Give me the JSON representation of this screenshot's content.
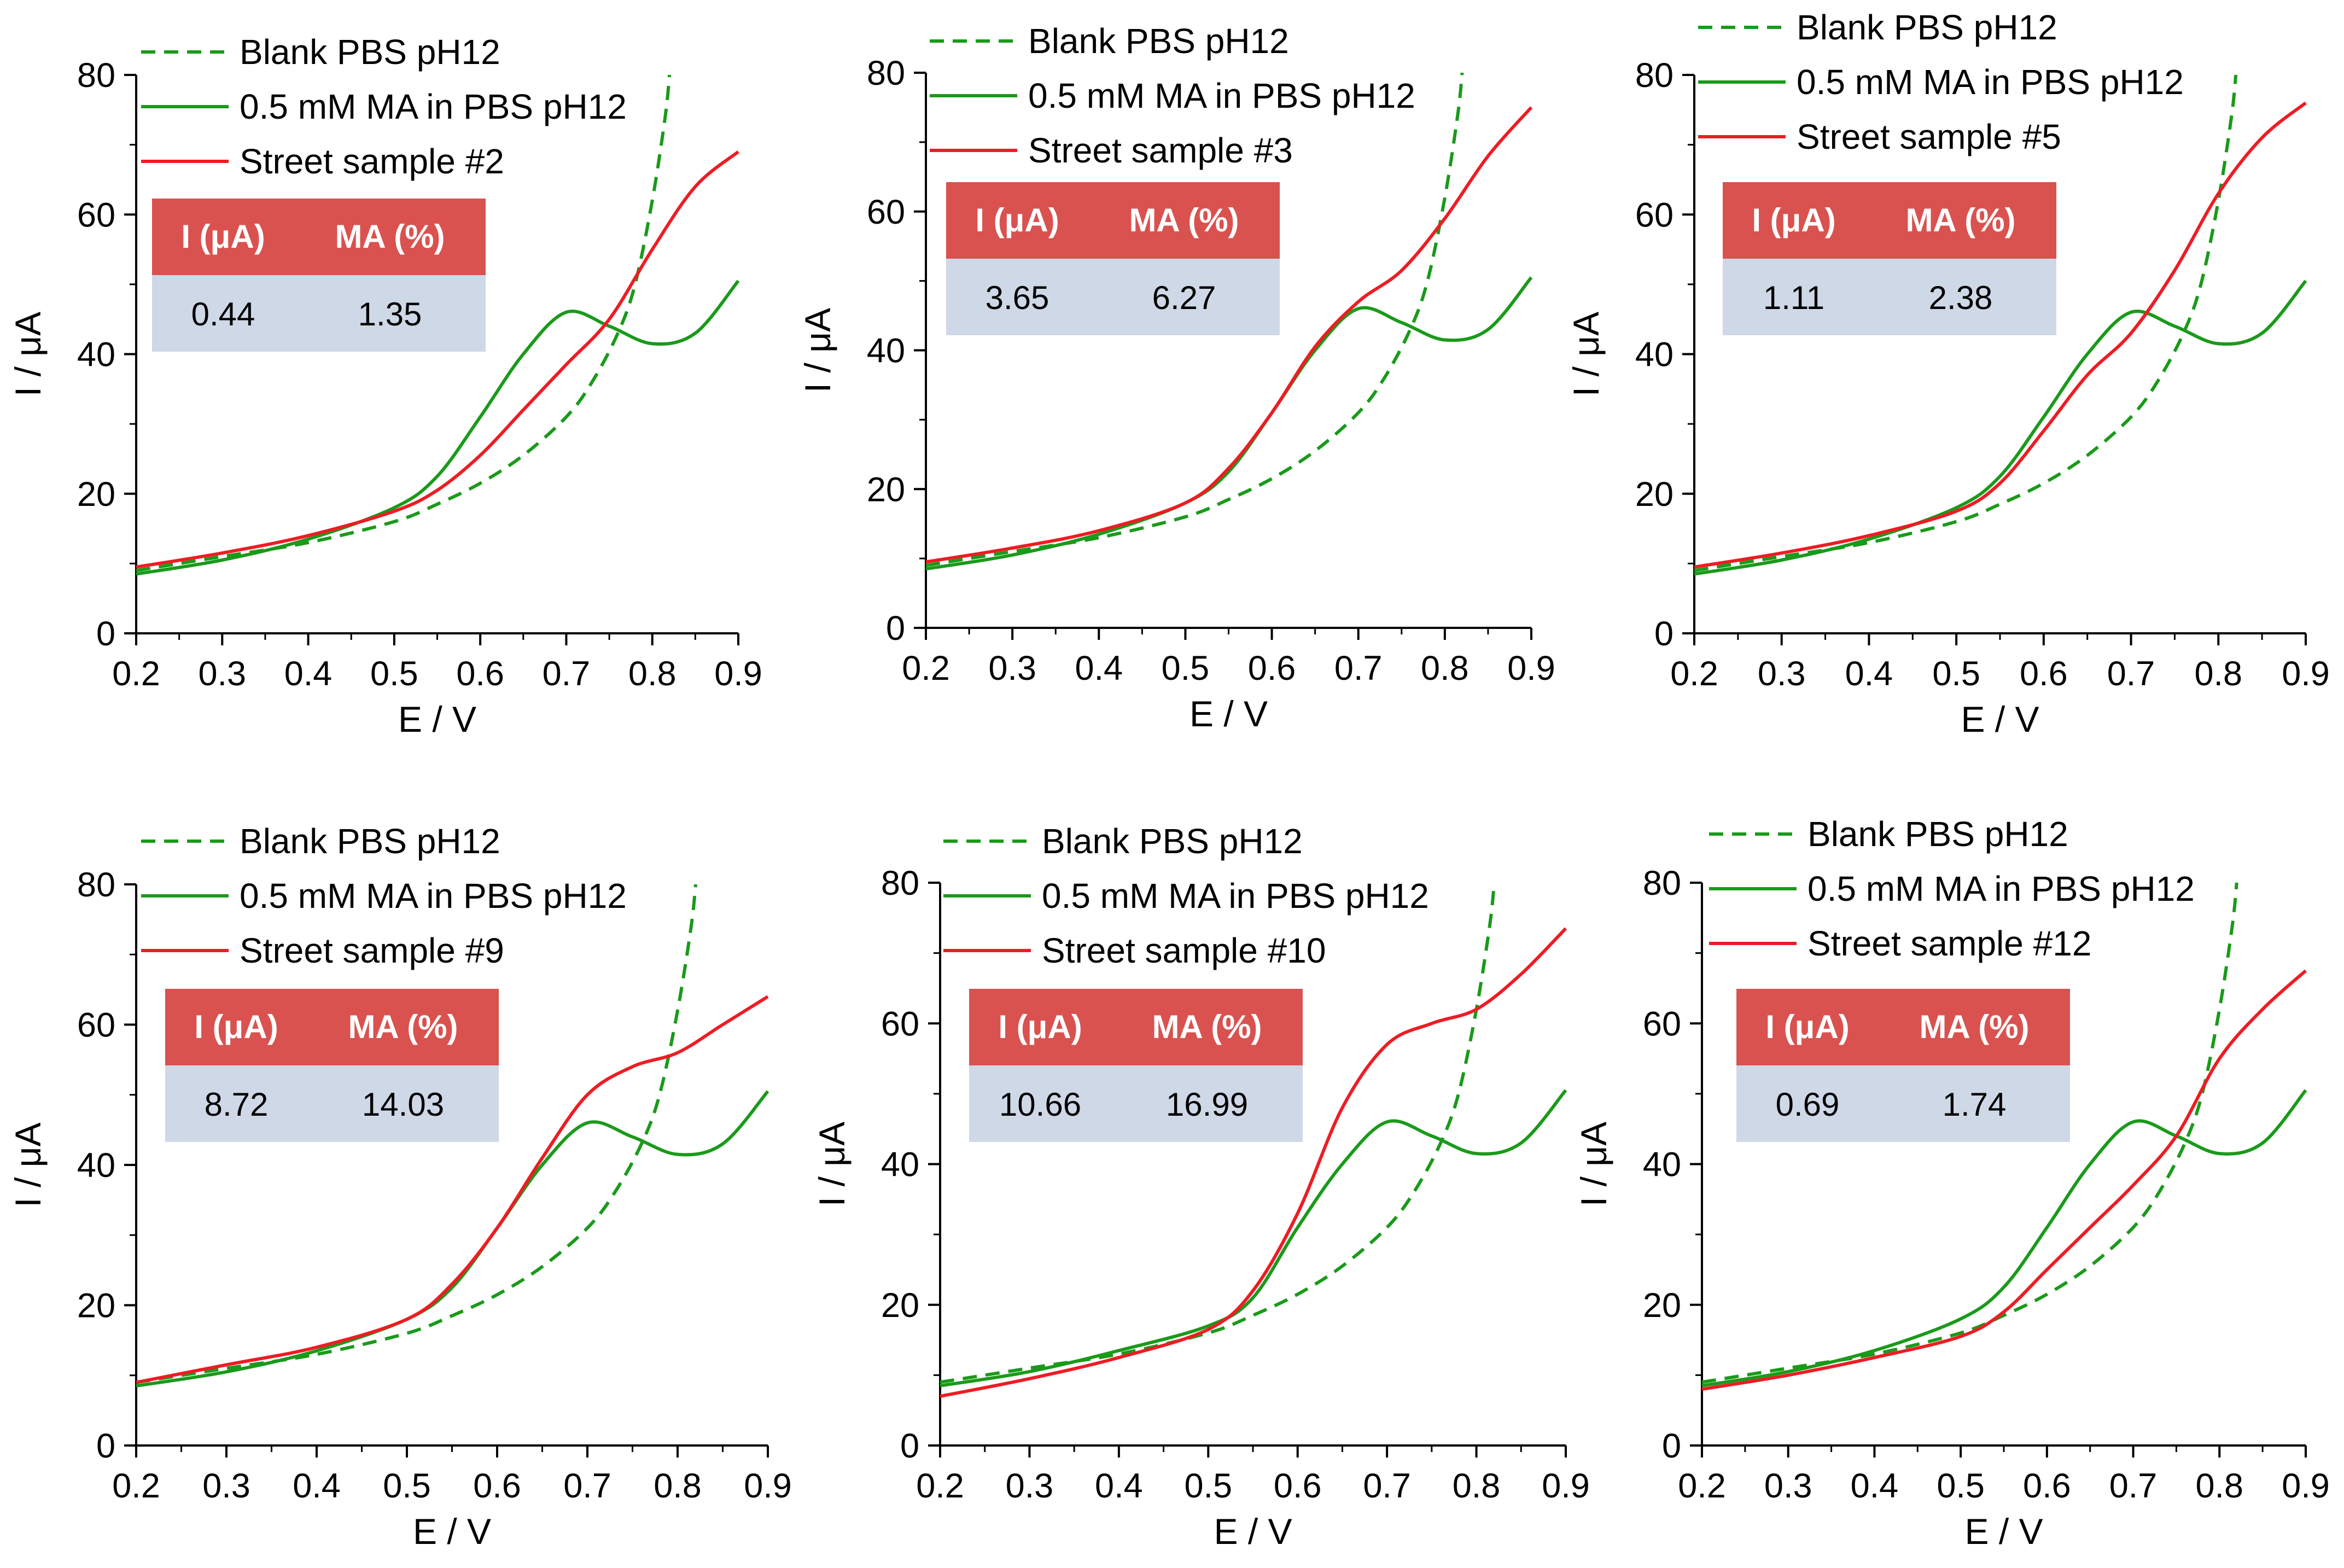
{
  "figure": {
    "description_panels": 6,
    "colors": {
      "blank": "#1a9a1a",
      "ma": "#1a9a1a",
      "sample": "#ee1c24",
      "table_header": "#d9524f",
      "table_body": "#cfd8e6"
    }
  },
  "chart_data": [
    {
      "type": "line",
      "xlabel": "E / V",
      "ylabel": "I / μA",
      "xlim": [
        0.2,
        0.9
      ],
      "ylim": [
        0,
        80
      ],
      "x_ticks": [
        "0.2",
        "0.3",
        "0.4",
        "0.5",
        "0.6",
        "0.7",
        "0.8",
        "0.9"
      ],
      "y_ticks": [
        "0",
        "20",
        "40",
        "60",
        "80"
      ],
      "legend": [
        "Blank PBS pH12",
        "0.5 mM MA in PBS pH12",
        "Street sample #2"
      ],
      "table": {
        "headers": [
          "I (μA)",
          "MA (%)"
        ],
        "row": [
          "0.44",
          "1.35"
        ]
      },
      "series": [
        {
          "name": "Blank PBS pH12",
          "style": "dashed",
          "color": "#1a9a1a",
          "x": [
            0.2,
            0.3,
            0.4,
            0.5,
            0.55,
            0.6,
            0.65,
            0.7,
            0.73,
            0.76,
            0.78,
            0.8,
            0.815,
            0.82
          ],
          "y": [
            9,
            11,
            13,
            16,
            18.5,
            21.5,
            25.5,
            31,
            36,
            43,
            50,
            62,
            74,
            80
          ]
        },
        {
          "name": "0.5 mM MA in PBS pH12",
          "style": "solid",
          "color": "#1a9a1a",
          "x": [
            0.2,
            0.3,
            0.4,
            0.5,
            0.55,
            0.6,
            0.65,
            0.7,
            0.75,
            0.8,
            0.85,
            0.9
          ],
          "y": [
            8.5,
            10.5,
            13.5,
            18,
            22.5,
            31,
            40,
            46,
            44,
            41.5,
            43,
            50.5
          ]
        },
        {
          "name": "Street sample #2",
          "style": "solid",
          "color": "#ee1c24",
          "x": [
            0.2,
            0.3,
            0.4,
            0.5,
            0.55,
            0.6,
            0.65,
            0.7,
            0.75,
            0.8,
            0.85,
            0.9
          ],
          "y": [
            9.5,
            11.5,
            14,
            17.5,
            20.5,
            25.5,
            32,
            38.5,
            45,
            55,
            64,
            69
          ]
        }
      ]
    },
    {
      "type": "line",
      "xlabel": "E / V",
      "ylabel": "I / μA",
      "xlim": [
        0.2,
        0.9
      ],
      "ylim": [
        0,
        80
      ],
      "x_ticks": [
        "0.2",
        "0.3",
        "0.4",
        "0.5",
        "0.6",
        "0.7",
        "0.8",
        "0.9"
      ],
      "y_ticks": [
        "0",
        "20",
        "40",
        "60",
        "80"
      ],
      "legend": [
        "Blank PBS pH12",
        "0.5 mM MA in PBS pH12",
        "Street sample #3"
      ],
      "table": {
        "headers": [
          "I (μA)",
          "MA (%)"
        ],
        "row": [
          "3.65",
          "6.27"
        ]
      },
      "series": [
        {
          "name": "Blank PBS pH12",
          "style": "dashed",
          "color": "#1a9a1a",
          "x": [
            0.2,
            0.3,
            0.4,
            0.5,
            0.55,
            0.6,
            0.65,
            0.7,
            0.73,
            0.76,
            0.78,
            0.8,
            0.815,
            0.82
          ],
          "y": [
            9,
            11,
            13,
            16,
            18.5,
            21.5,
            25.5,
            31,
            36,
            43,
            50,
            62,
            74,
            80
          ]
        },
        {
          "name": "0.5 mM MA in PBS pH12",
          "style": "solid",
          "color": "#1a9a1a",
          "x": [
            0.2,
            0.3,
            0.4,
            0.5,
            0.55,
            0.6,
            0.65,
            0.7,
            0.75,
            0.8,
            0.85,
            0.9
          ],
          "y": [
            8.5,
            10.5,
            13.5,
            18,
            22.5,
            31,
            40,
            46,
            44,
            41.5,
            43,
            50.5
          ]
        },
        {
          "name": "Street sample #3",
          "style": "solid",
          "color": "#ee1c24",
          "x": [
            0.2,
            0.3,
            0.4,
            0.5,
            0.55,
            0.6,
            0.65,
            0.7,
            0.75,
            0.8,
            0.85,
            0.9
          ],
          "y": [
            9.5,
            11.5,
            14,
            18,
            23,
            31,
            40.5,
            47,
            51.5,
            59,
            68,
            75
          ]
        }
      ]
    },
    {
      "type": "line",
      "xlabel": "E / V",
      "ylabel": "I / μA",
      "xlim": [
        0.2,
        0.9
      ],
      "ylim": [
        0,
        80
      ],
      "x_ticks": [
        "0.2",
        "0.3",
        "0.4",
        "0.5",
        "0.6",
        "0.7",
        "0.8",
        "0.9"
      ],
      "y_ticks": [
        "0",
        "20",
        "40",
        "60",
        "80"
      ],
      "legend": [
        "Blank PBS pH12",
        "0.5 mM MA in PBS pH12",
        "Street sample #5"
      ],
      "table": {
        "headers": [
          "I (μA)",
          "MA (%)"
        ],
        "row": [
          "1.11",
          "2.38"
        ]
      },
      "series": [
        {
          "name": "Blank PBS pH12",
          "style": "dashed",
          "color": "#1a9a1a",
          "x": [
            0.2,
            0.3,
            0.4,
            0.5,
            0.55,
            0.6,
            0.65,
            0.7,
            0.73,
            0.76,
            0.78,
            0.8,
            0.815,
            0.82
          ],
          "y": [
            9,
            11,
            13,
            16,
            18.5,
            21.5,
            25.5,
            31,
            36,
            43,
            50,
            62,
            74,
            80
          ]
        },
        {
          "name": "0.5 mM MA in PBS pH12",
          "style": "solid",
          "color": "#1a9a1a",
          "x": [
            0.2,
            0.3,
            0.4,
            0.5,
            0.55,
            0.6,
            0.65,
            0.7,
            0.75,
            0.8,
            0.85,
            0.9
          ],
          "y": [
            8.5,
            10.5,
            13.5,
            18,
            22.5,
            31,
            40,
            46,
            44,
            41.5,
            43,
            50.5
          ]
        },
        {
          "name": "Street sample #5",
          "style": "solid",
          "color": "#ee1c24",
          "x": [
            0.2,
            0.3,
            0.4,
            0.5,
            0.55,
            0.6,
            0.65,
            0.7,
            0.75,
            0.8,
            0.85,
            0.9
          ],
          "y": [
            9.5,
            11.5,
            14,
            17.5,
            21.5,
            29,
            37,
            43,
            52,
            63,
            71,
            76
          ]
        }
      ]
    },
    {
      "type": "line",
      "xlabel": "E / V",
      "ylabel": "I / μA",
      "xlim": [
        0.2,
        0.9
      ],
      "ylim": [
        0,
        80
      ],
      "x_ticks": [
        "0.2",
        "0.3",
        "0.4",
        "0.5",
        "0.6",
        "0.7",
        "0.8",
        "0.9"
      ],
      "y_ticks": [
        "0",
        "20",
        "40",
        "60",
        "80"
      ],
      "legend": [
        "Blank PBS pH12",
        "0.5 mM MA in PBS pH12",
        "Street sample #9"
      ],
      "table": {
        "headers": [
          "I (μA)",
          "MA (%)"
        ],
        "row": [
          "8.72",
          "14.03"
        ]
      },
      "series": [
        {
          "name": "Blank PBS pH12",
          "style": "dashed",
          "color": "#1a9a1a",
          "x": [
            0.2,
            0.3,
            0.4,
            0.5,
            0.55,
            0.6,
            0.65,
            0.7,
            0.73,
            0.76,
            0.78,
            0.8,
            0.815,
            0.82
          ],
          "y": [
            9,
            11,
            13,
            16,
            18.5,
            21.5,
            25.5,
            31,
            36,
            43,
            50,
            62,
            74,
            80
          ]
        },
        {
          "name": "0.5 mM MA in PBS pH12",
          "style": "solid",
          "color": "#1a9a1a",
          "x": [
            0.2,
            0.3,
            0.4,
            0.5,
            0.55,
            0.6,
            0.65,
            0.7,
            0.75,
            0.8,
            0.85,
            0.9
          ],
          "y": [
            8.5,
            10.5,
            13.5,
            18,
            22.5,
            31,
            40,
            46,
            44,
            41.5,
            43,
            50.5
          ]
        },
        {
          "name": "Street sample #9",
          "style": "solid",
          "color": "#ee1c24",
          "x": [
            0.2,
            0.3,
            0.4,
            0.5,
            0.55,
            0.6,
            0.65,
            0.7,
            0.75,
            0.8,
            0.85,
            0.9
          ],
          "y": [
            9,
            11.5,
            14,
            18,
            23,
            31,
            41,
            50,
            54,
            56,
            60,
            64
          ]
        }
      ]
    },
    {
      "type": "line",
      "xlabel": "E / V",
      "ylabel": "I / μA",
      "xlim": [
        0.2,
        0.9
      ],
      "ylim": [
        0,
        80
      ],
      "x_ticks": [
        "0.2",
        "0.3",
        "0.4",
        "0.5",
        "0.6",
        "0.7",
        "0.8",
        "0.9"
      ],
      "y_ticks": [
        "0",
        "20",
        "40",
        "60",
        "80"
      ],
      "legend": [
        "Blank PBS pH12",
        "0.5 mM MA in PBS pH12",
        "Street sample #10"
      ],
      "table": {
        "headers": [
          "I (μA)",
          "MA (%)"
        ],
        "row": [
          "10.66",
          "16.99"
        ]
      },
      "series": [
        {
          "name": "Blank PBS pH12",
          "style": "dashed",
          "color": "#1a9a1a",
          "x": [
            0.2,
            0.3,
            0.4,
            0.5,
            0.55,
            0.6,
            0.65,
            0.7,
            0.73,
            0.76,
            0.78,
            0.8,
            0.815,
            0.82
          ],
          "y": [
            9,
            11,
            13,
            16,
            18.5,
            21.5,
            25.5,
            31,
            36,
            43,
            50,
            62,
            74,
            80
          ]
        },
        {
          "name": "0.5 mM MA in PBS pH12",
          "style": "solid",
          "color": "#1a9a1a",
          "x": [
            0.2,
            0.3,
            0.4,
            0.5,
            0.55,
            0.6,
            0.65,
            0.7,
            0.75,
            0.8,
            0.85,
            0.9
          ],
          "y": [
            8.5,
            10.5,
            13.5,
            17,
            21,
            31,
            40,
            46,
            44,
            41.5,
            43,
            50.5
          ]
        },
        {
          "name": "Street sample #10",
          "style": "solid",
          "color": "#ee1c24",
          "x": [
            0.2,
            0.3,
            0.4,
            0.5,
            0.55,
            0.6,
            0.65,
            0.7,
            0.75,
            0.8,
            0.85,
            0.9
          ],
          "y": [
            7,
            9.5,
            12.5,
            16.5,
            22,
            33,
            48,
            57,
            60,
            62,
            67,
            73.5
          ]
        }
      ]
    },
    {
      "type": "line",
      "xlabel": "E / V",
      "ylabel": "I / μA",
      "xlim": [
        0.2,
        0.9
      ],
      "ylim": [
        0,
        80
      ],
      "x_ticks": [
        "0.2",
        "0.3",
        "0.4",
        "0.5",
        "0.6",
        "0.7",
        "0.8",
        "0.9"
      ],
      "y_ticks": [
        "0",
        "20",
        "40",
        "60",
        "80"
      ],
      "legend": [
        "Blank PBS pH12",
        "0.5 mM MA in PBS pH12",
        "Street sample #12"
      ],
      "table": {
        "headers": [
          "I (μA)",
          "MA (%)"
        ],
        "row": [
          "0.69",
          "1.74"
        ]
      },
      "series": [
        {
          "name": "Blank PBS pH12",
          "style": "dashed",
          "color": "#1a9a1a",
          "x": [
            0.2,
            0.3,
            0.4,
            0.5,
            0.55,
            0.6,
            0.65,
            0.7,
            0.73,
            0.76,
            0.78,
            0.8,
            0.815,
            0.82
          ],
          "y": [
            9,
            11,
            13,
            16,
            18.5,
            21.5,
            25.5,
            31,
            36,
            43,
            50,
            62,
            74,
            80
          ]
        },
        {
          "name": "0.5 mM MA in PBS pH12",
          "style": "solid",
          "color": "#1a9a1a",
          "x": [
            0.2,
            0.3,
            0.4,
            0.5,
            0.55,
            0.6,
            0.65,
            0.7,
            0.75,
            0.8,
            0.85,
            0.9
          ],
          "y": [
            8.5,
            10.5,
            13.5,
            18,
            22.5,
            31,
            40,
            46,
            44,
            41.5,
            43,
            50.5
          ]
        },
        {
          "name": "Street sample #12",
          "style": "solid",
          "color": "#ee1c24",
          "x": [
            0.2,
            0.3,
            0.4,
            0.5,
            0.55,
            0.6,
            0.65,
            0.7,
            0.75,
            0.8,
            0.85,
            0.9
          ],
          "y": [
            8,
            10,
            12.5,
            15.5,
            19,
            25,
            31,
            37,
            44,
            55,
            62,
            67.5
          ]
        }
      ]
    }
  ]
}
